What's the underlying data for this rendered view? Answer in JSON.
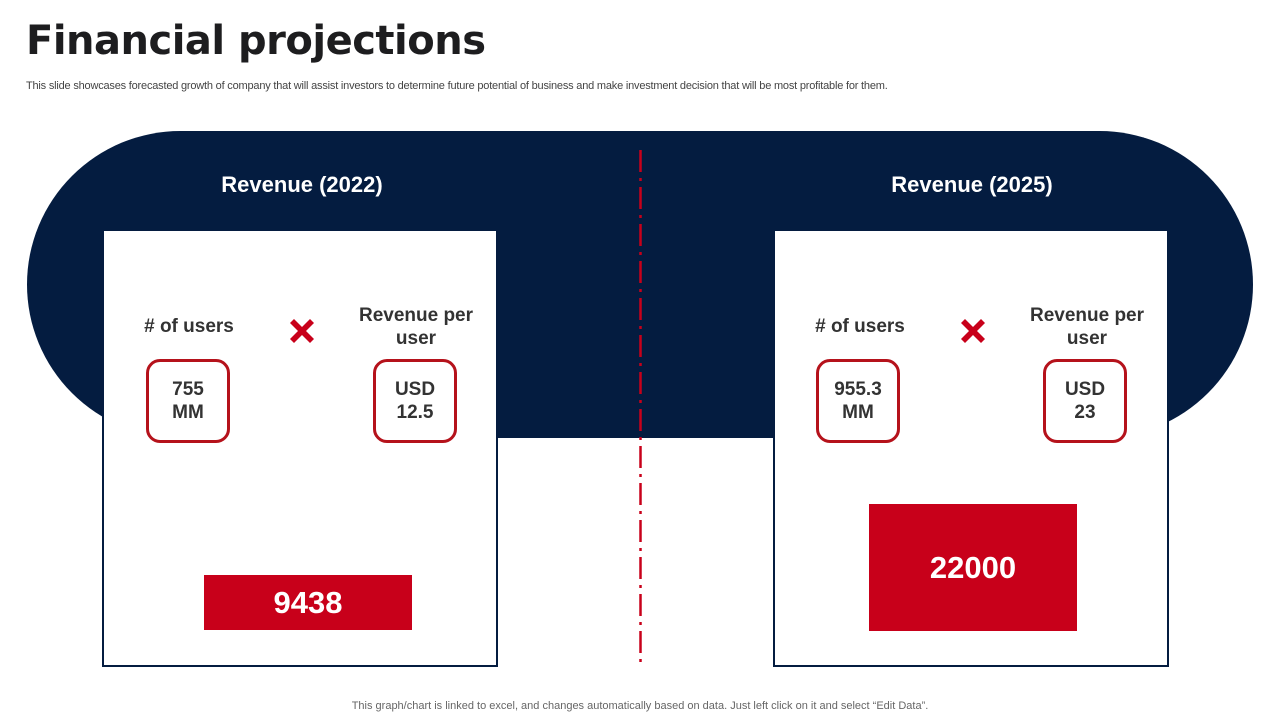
{
  "header": {
    "title": "Financial projections",
    "subtitle": "This slide showcases forecasted growth of company that will assist investors to determine future potential of business and make investment decision that will be most profitable for them."
  },
  "panels": [
    {
      "title": "Revenue (2022)",
      "users_label": "# of users",
      "users_value": "755\nMM",
      "rpu_label": "Revenue per user",
      "rpu_value": "USD\n12.5",
      "result": "9438"
    },
    {
      "title": "Revenue (2025)",
      "users_label": "# of users",
      "users_value": "955.3\nMM",
      "rpu_label": "Revenue per user",
      "rpu_value": "USD\n23",
      "result": "22000"
    }
  ],
  "footer": {
    "note": "This graph/chart is linked to excel,  and changes automatically based on data. Just left click on it and select “Edit Data”."
  },
  "colors": {
    "navy": "#041c40",
    "red": "#c8001a",
    "border_red": "#b5121b"
  },
  "icons": {
    "multiply": "multiply-x-icon"
  }
}
